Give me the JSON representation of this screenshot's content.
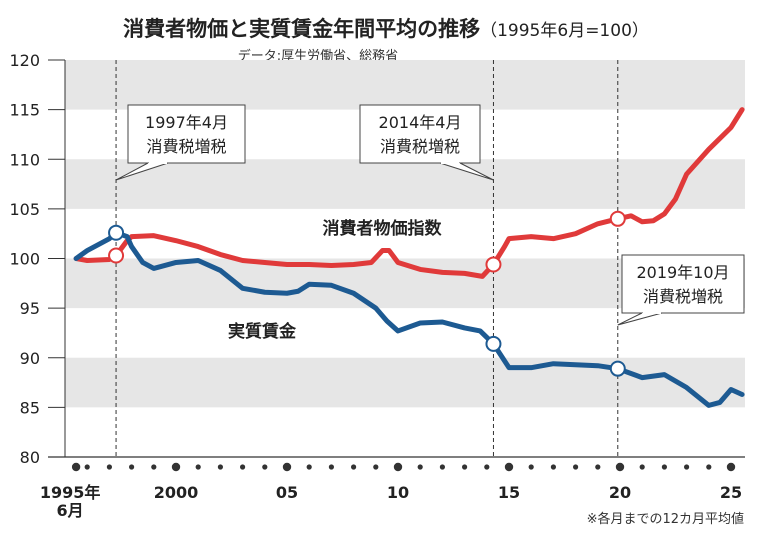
{
  "chart_data": {
    "type": "line",
    "title": "消費者物価と実質賃金年間平均の推移",
    "subtitle": "（1995年6月=100）",
    "source": "データ:厚生労働省、総務省",
    "note": "※各月までの12カ月平均値",
    "ylim": [
      80,
      120
    ],
    "yticks": [
      80,
      85,
      90,
      95,
      100,
      105,
      110,
      115,
      120
    ],
    "xlim": [
      1995,
      2025.8
    ],
    "xticks": [
      {
        "x": 1995.5,
        "label": "1995年",
        "label2": "6月"
      },
      {
        "x": 2000,
        "label": "2000"
      },
      {
        "x": 2005,
        "label": "05"
      },
      {
        "x": 2010,
        "label": "10"
      },
      {
        "x": 2015,
        "label": "15"
      },
      {
        "x": 2020,
        "label": "20"
      },
      {
        "x": 2025,
        "label": "25"
      }
    ],
    "grid": "alternating horizontal bands",
    "series": [
      {
        "name": "消費者物価指数",
        "color": "#e03a3a",
        "x": [
          1995.5,
          1996,
          1997,
          1997.3,
          1997.8,
          1998,
          1999,
          2000,
          2001,
          2002,
          2003,
          2004,
          2005,
          2006,
          2007,
          2008,
          2008.8,
          2009.3,
          2009.6,
          2010,
          2011,
          2012,
          2013,
          2013.8,
          2014.3,
          2014.8,
          2015,
          2016,
          2017,
          2018,
          2019,
          2019.9,
          2020.5,
          2021,
          2021.5,
          2022,
          2022.5,
          2023,
          2024,
          2025,
          2025.5
        ],
        "y": [
          100,
          99.8,
          99.9,
          100.3,
          101.8,
          102.2,
          102.3,
          101.8,
          101.2,
          100.4,
          99.8,
          99.6,
          99.4,
          99.4,
          99.3,
          99.4,
          99.6,
          100.8,
          100.8,
          99.6,
          98.9,
          98.6,
          98.5,
          98.2,
          99.4,
          101.2,
          102.0,
          102.2,
          102.0,
          102.5,
          103.5,
          104.0,
          104.3,
          103.7,
          103.8,
          104.5,
          106.0,
          108.5,
          111.0,
          113.2,
          115.0
        ]
      },
      {
        "name": "実質賃金",
        "color": "#1d5a92",
        "x": [
          1995.5,
          1996,
          1997,
          1997.3,
          1997.8,
          1998,
          1998.5,
          1999,
          2000,
          2001,
          2002,
          2003,
          2004,
          2005,
          2005.5,
          2006,
          2007,
          2008,
          2009,
          2009.5,
          2010,
          2011,
          2012,
          2013,
          2013.7,
          2014.3,
          2015,
          2016,
          2017,
          2018,
          2019,
          2019.9,
          2021,
          2022,
          2023,
          2024,
          2024.5,
          2025,
          2025.5
        ],
        "y": [
          100,
          100.8,
          102.0,
          102.6,
          102.2,
          101.2,
          99.6,
          99.0,
          99.6,
          99.8,
          98.8,
          97.0,
          96.6,
          96.5,
          96.7,
          97.4,
          97.3,
          96.5,
          95.0,
          93.7,
          92.7,
          93.5,
          93.6,
          93.0,
          92.7,
          91.4,
          89.0,
          89.0,
          89.4,
          89.3,
          89.2,
          88.9,
          88.0,
          88.3,
          87.0,
          85.2,
          85.5,
          86.8,
          86.3
        ]
      }
    ],
    "markers": [
      {
        "x": 1997.3,
        "series": 0,
        "y": 100.3
      },
      {
        "x": 1997.3,
        "series": 1,
        "y": 102.6
      },
      {
        "x": 2014.3,
        "series": 0,
        "y": 99.4
      },
      {
        "x": 2014.3,
        "series": 1,
        "y": 91.4
      },
      {
        "x": 2019.9,
        "series": 0,
        "y": 104.0
      },
      {
        "x": 2019.9,
        "series": 1,
        "y": 88.9
      }
    ],
    "annotations": [
      {
        "x": 1997.3,
        "line1": "1997年4月",
        "line2": "消費税増税"
      },
      {
        "x": 2014.3,
        "line1": "2014年4月",
        "line2": "消費税増税"
      },
      {
        "x": 2019.9,
        "line1": "2019年10月",
        "line2": "消費税増税"
      }
    ],
    "series_labels": [
      "消費者物価指数",
      "実質賃金"
    ]
  }
}
